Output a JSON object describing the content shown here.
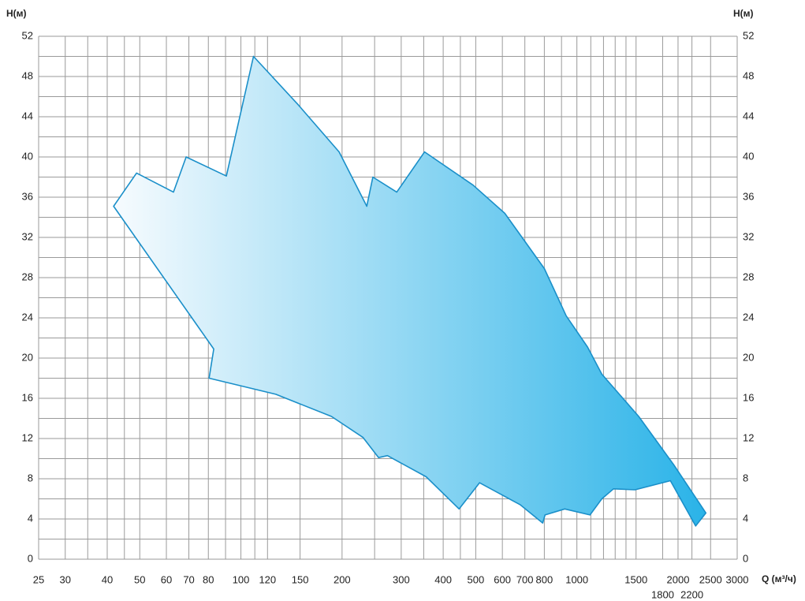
{
  "chart_data": {
    "type": "area",
    "y_label": "H(м)",
    "y2_label": "H(м)",
    "x_label": "Q (м³/ч)",
    "log_x": true,
    "grid": true,
    "xlim": [
      25,
      3000
    ],
    "ylim": [
      0,
      52
    ],
    "xticks": [
      25,
      30,
      40,
      50,
      60,
      70,
      80,
      100,
      120,
      150,
      200,
      300,
      400,
      500,
      600,
      700,
      800,
      1000,
      1500,
      1800,
      2000,
      2200,
      2500,
      3000
    ],
    "x_minor_grid": [
      35,
      45,
      90,
      110,
      250,
      350,
      450,
      900,
      1100,
      1200,
      1300,
      1400
    ],
    "yticks": [
      0,
      4,
      8,
      12,
      16,
      20,
      24,
      28,
      32,
      36,
      40,
      44,
      48,
      52
    ],
    "y_minor_grid": [
      2,
      6,
      10,
      14,
      18,
      22,
      26,
      30,
      34,
      38,
      42,
      46,
      50
    ],
    "color": "#1a8fc9",
    "fill_colors": [
      "#f7fbfe",
      "#2ab3e8"
    ],
    "x": [
      41.8,
      48.9,
      63,
      68.7,
      90.5,
      109,
      148,
      196,
      237,
      247,
      291,
      352,
      491,
      610,
      800,
      929,
      1076,
      1186,
      1528,
      1950,
      2421,
      2256,
      1898,
      1489,
      1285,
      1186,
      1094,
      920,
      804,
      791,
      679,
      513,
      446,
      356,
      273,
      257,
      231,
      186,
      127,
      80.4,
      83
    ],
    "y": [
      35.1,
      38.4,
      36.5,
      40.0,
      38.1,
      50.0,
      45.2,
      40.5,
      35.1,
      38.0,
      36.5,
      40.5,
      37.2,
      34.4,
      28.9,
      24.2,
      21.1,
      18.4,
      14.2,
      9.3,
      4.6,
      3.3,
      7.8,
      6.9,
      7.0,
      6.0,
      4.4,
      5.0,
      4.4,
      3.6,
      5.4,
      7.6,
      5.0,
      8.2,
      10.3,
      10.1,
      12.1,
      14.2,
      16.4,
      18.0,
      20.9
    ]
  }
}
